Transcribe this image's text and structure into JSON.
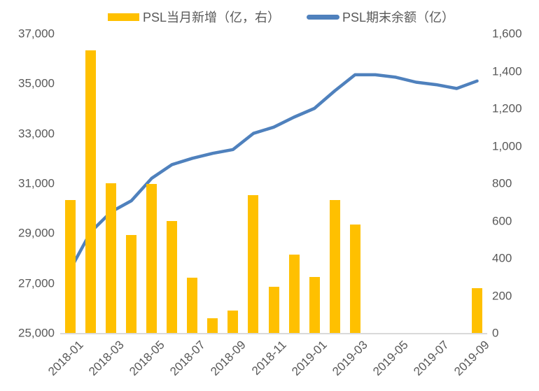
{
  "chart": {
    "legend": [
      {
        "label": "PSL当月新增（亿，右）",
        "swatch": "bar-swatch",
        "color": "#FFC000"
      },
      {
        "label": "PSL期末余额（亿）",
        "swatch": "line-swatch",
        "color": "#4F81BD"
      }
    ],
    "colors": {
      "bar": "#FFC000",
      "line": "#4F81BD",
      "text": "#595959",
      "axis_line": "#d9d9d9",
      "background": "#ffffff"
    },
    "left_axis_ticks": [
      "37,000",
      "35,000",
      "33,000",
      "31,000",
      "29,000",
      "27,000",
      "25,000"
    ],
    "right_axis_ticks": [
      "1,600",
      "1,400",
      "1,200",
      "1,000",
      "800",
      "600",
      "400",
      "200",
      "0"
    ],
    "x_axis_visible_ticks": [
      {
        "label": "2018-01",
        "month_index": 0
      },
      {
        "label": "2018-03",
        "month_index": 2
      },
      {
        "label": "2018-05",
        "month_index": 4
      },
      {
        "label": "2018-07",
        "month_index": 6
      },
      {
        "label": "2018-09",
        "month_index": 8
      },
      {
        "label": "2018-11",
        "month_index": 10
      },
      {
        "label": "2019-01",
        "month_index": 12
      },
      {
        "label": "2019-03",
        "month_index": 14
      },
      {
        "label": "2019-05",
        "month_index": 16
      },
      {
        "label": "2019-07",
        "month_index": 18
      },
      {
        "label": "2019-09",
        "month_index": 20
      }
    ]
  },
  "chart_data": {
    "type": "combo-bar-line",
    "categories": [
      "2018-01",
      "2018-02",
      "2018-03",
      "2018-04",
      "2018-05",
      "2018-06",
      "2018-07",
      "2018-08",
      "2018-09",
      "2018-10",
      "2018-11",
      "2018-12",
      "2019-01",
      "2019-02",
      "2019-03",
      "2019-04",
      "2019-05",
      "2019-06",
      "2019-07",
      "2019-08",
      "2019-09"
    ],
    "series": [
      {
        "name": "PSL当月新增（亿，右）",
        "type": "bar",
        "axis": "right",
        "color": "#FFC000",
        "values": [
          710,
          1510,
          800,
          525,
          795,
          600,
          295,
          80,
          120,
          735,
          245,
          420,
          300,
          710,
          580,
          null,
          null,
          null,
          null,
          null,
          240
        ]
      },
      {
        "name": "PSL期末余额（亿）",
        "type": "line",
        "axis": "left",
        "color": "#4F81BD",
        "values": [
          27550,
          29050,
          29850,
          30300,
          31200,
          31750,
          32000,
          32200,
          32350,
          33000,
          33250,
          33650,
          34000,
          34700,
          35350,
          35350,
          35250,
          35050,
          34950,
          34800,
          35100
        ]
      }
    ],
    "title": "",
    "xlabel": "",
    "ylabel_left": "",
    "ylabel_right": "",
    "left_ylim": [
      25000,
      37000
    ],
    "right_ylim": [
      0,
      1600
    ],
    "left_tick_step": 2000,
    "right_tick_step": 200,
    "grid": false,
    "legend_position": "top"
  }
}
